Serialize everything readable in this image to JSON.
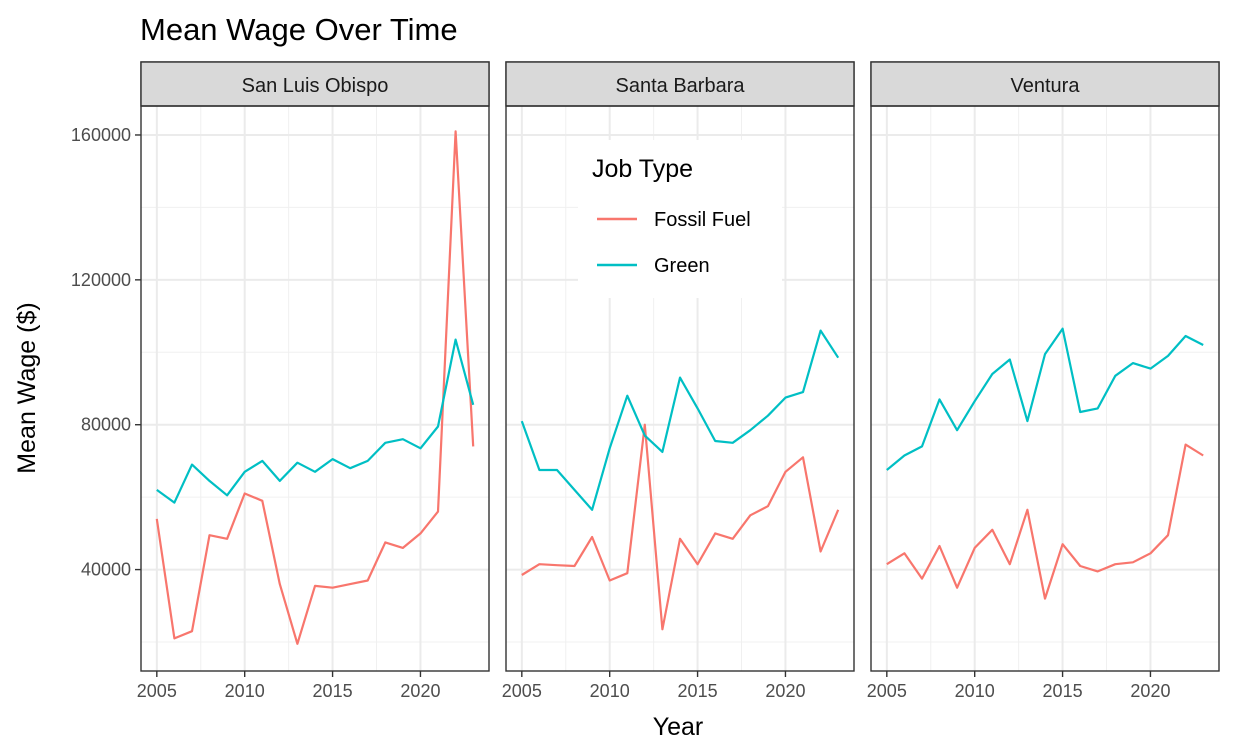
{
  "chart_data": {
    "type": "line",
    "title": "Mean Wage Over Time",
    "xlabel": "Year",
    "ylabel": "Mean Wage ($)",
    "xlim": [
      2004.1,
      2023.9
    ],
    "ylim": [
      12000,
      168000
    ],
    "x_ticks": [
      2005,
      2010,
      2015,
      2020
    ],
    "y_ticks": [
      40000,
      80000,
      120000,
      160000
    ],
    "grid": true,
    "legend": {
      "title": "Job Type",
      "placement": "inside-top-center of middle panel",
      "entries": [
        {
          "name": "Fossil Fuel",
          "color": "#F8766D"
        },
        {
          "name": "Green",
          "color": "#00BFC4"
        }
      ]
    },
    "x": [
      2005,
      2006,
      2007,
      2008,
      2009,
      2010,
      2011,
      2012,
      2013,
      2014,
      2015,
      2016,
      2017,
      2018,
      2019,
      2020,
      2021,
      2022,
      2023
    ],
    "panels": [
      {
        "name": "San Luis Obispo",
        "series": [
          {
            "name": "Fossil Fuel",
            "color": "#F8766D",
            "values": [
              54000,
              21000,
              23000,
              49500,
              48500,
              61000,
              59000,
              36000,
              19500,
              35500,
              35000,
              36000,
              37000,
              47500,
              46000,
              50000,
              56000,
              161000,
              74000
            ]
          },
          {
            "name": "Green",
            "color": "#00BFC4",
            "values": [
              62000,
              58500,
              69000,
              64500,
              60500,
              67000,
              70000,
              64500,
              69500,
              67000,
              70500,
              68000,
              70000,
              75000,
              76000,
              73500,
              79500,
              103500,
              85500
            ]
          }
        ]
      },
      {
        "name": "Santa Barbara",
        "series": [
          {
            "name": "Fossil Fuel",
            "color": "#F8766D",
            "values": [
              38500,
              41500,
              41200,
              41000,
              49000,
              37000,
              39000,
              80000,
              23500,
              48500,
              41500,
              50000,
              48500,
              55000,
              57500,
              67000,
              71000,
              45000,
              56500
            ]
          },
          {
            "name": "Green",
            "color": "#00BFC4",
            "values": [
              81000,
              67500,
              67500,
              62000,
              56500,
              73500,
              88000,
              77000,
              72500,
              93000,
              84500,
              75500,
              75000,
              78500,
              82500,
              87500,
              89000,
              106000,
              98500
            ]
          }
        ]
      },
      {
        "name": "Ventura",
        "series": [
          {
            "name": "Fossil Fuel",
            "color": "#F8766D",
            "values": [
              41500,
              44500,
              37500,
              46500,
              35000,
              46000,
              51000,
              41500,
              56500,
              32000,
              47000,
              41000,
              39500,
              41500,
              42000,
              44500,
              49500,
              74500,
              71500
            ]
          },
          {
            "name": "Green",
            "color": "#00BFC4",
            "values": [
              67500,
              71500,
              74000,
              87000,
              78500,
              86500,
              94000,
              98000,
              81000,
              99500,
              106500,
              83500,
              84500,
              93500,
              97000,
              95500,
              99000,
              104500,
              102000
            ]
          }
        ]
      }
    ]
  }
}
